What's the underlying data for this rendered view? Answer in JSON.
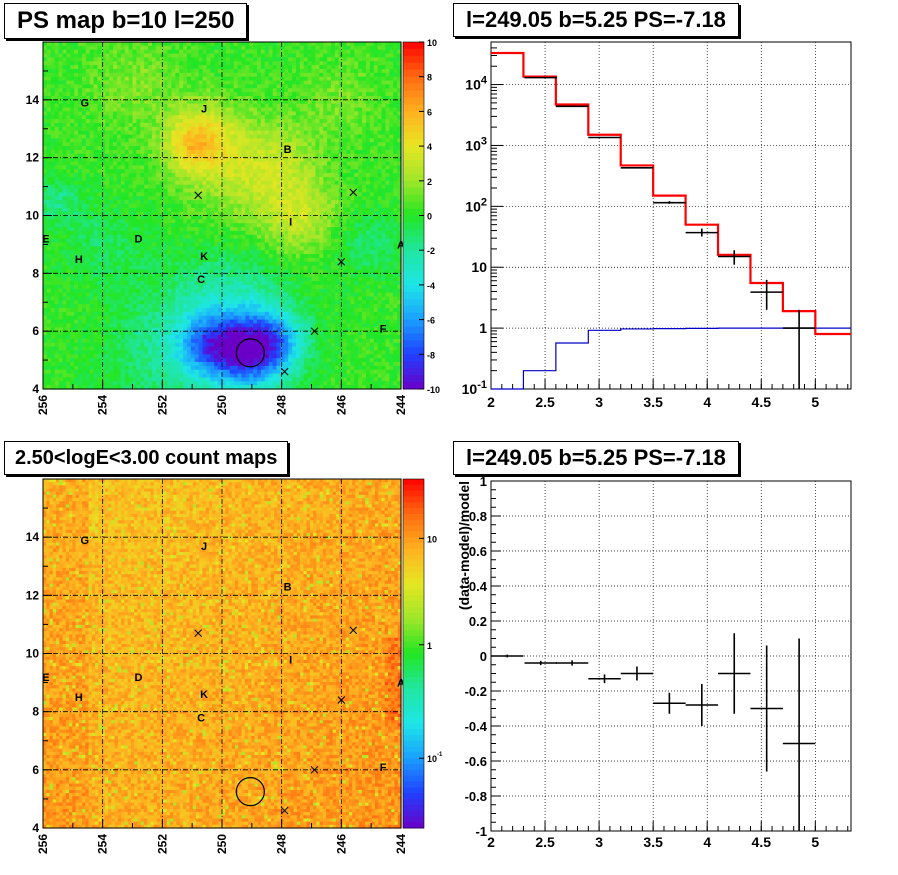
{
  "panels": {
    "ps_map": {
      "title": "PS map b=10 l=250",
      "x_ticks": [
        "256",
        "254",
        "252",
        "250",
        "248",
        "246",
        "244"
      ],
      "y_ticks": [
        "4",
        "6",
        "8",
        "10",
        "12",
        "14"
      ],
      "colorbar_ticks": [
        "10",
        "8",
        "6",
        "4",
        "2",
        "0",
        "-2",
        "-4",
        "-6",
        "-8",
        "-10"
      ],
      "source_labels": [
        "G",
        "J",
        "B",
        "I",
        "E",
        "D",
        "K",
        "H",
        "C",
        "A",
        "F"
      ]
    },
    "spectrum": {
      "title": "l=249.05 b=5.25 PS=-7.18",
      "x_ticks": [
        "2",
        "2.5",
        "3",
        "3.5",
        "4",
        "4.5",
        "5"
      ],
      "y_ticks": [
        "10^-1",
        "1",
        "10",
        "10^2",
        "10^3",
        "10^4"
      ]
    },
    "count_map": {
      "title": "2.50<logE<3.00 count maps",
      "x_ticks": [
        "256",
        "254",
        "252",
        "250",
        "248",
        "246",
        "244"
      ],
      "y_ticks": [
        "4",
        "6",
        "8",
        "10",
        "12",
        "14"
      ],
      "colorbar_ticks": [
        "10",
        "1",
        "10^-1"
      ],
      "source_labels": [
        "G",
        "J",
        "B",
        "I",
        "E",
        "D",
        "K",
        "H",
        "C",
        "A",
        "F"
      ]
    },
    "residual": {
      "title": "l=249.05 b=5.25 PS=-7.18",
      "ylabel": "(data-model)/model",
      "x_ticks": [
        "2",
        "2.5",
        "3",
        "3.5",
        "4",
        "4.5",
        "5"
      ],
      "y_ticks": [
        "1",
        "0.8",
        "0.6",
        "0.4",
        "0.2",
        "0",
        "-0.2",
        "-0.4",
        "-0.6",
        "-0.8",
        "-1"
      ]
    }
  },
  "chart_data": [
    {
      "type": "heatmap",
      "title": "PS map b=10 l=250",
      "xlim": [
        256,
        244
      ],
      "ylim": [
        4,
        16
      ],
      "zlim": [
        -10,
        10
      ],
      "colormap": [
        "#6a00c8",
        "#2040ff",
        "#1aa0ff",
        "#1ee6e6",
        "#20e6a0",
        "#22e622",
        "#a0e62a",
        "#e6e622",
        "#ffb020",
        "#ff6a10",
        "#ff0000"
      ],
      "dominant_value": 0,
      "markers": [
        {
          "label": "G",
          "l": 254.6,
          "b": 13.9
        },
        {
          "label": "J",
          "l": 250.6,
          "b": 13.7
        },
        {
          "label": "B",
          "l": 247.8,
          "b": 12.3
        },
        {
          "label": "I",
          "l": 247.7,
          "b": 9.8
        },
        {
          "label": "E",
          "l": 255.9,
          "b": 9.2
        },
        {
          "label": "D",
          "l": 252.8,
          "b": 9.2
        },
        {
          "label": "K",
          "l": 250.6,
          "b": 8.6
        },
        {
          "label": "H",
          "l": 254.8,
          "b": 8.5
        },
        {
          "label": "C",
          "l": 250.7,
          "b": 7.8
        },
        {
          "label": "A",
          "l": 244.0,
          "b": 9.0
        },
        {
          "label": "F",
          "l": 244.6,
          "b": 6.1
        }
      ],
      "crosses": [
        {
          "l": 250.8,
          "b": 10.7
        },
        {
          "l": 245.6,
          "b": 10.8
        },
        {
          "l": 246.0,
          "b": 8.4
        },
        {
          "l": 246.9,
          "b": 6.0
        },
        {
          "l": 247.9,
          "b": 4.6
        }
      ],
      "circle": {
        "l": 249.05,
        "b": 5.25
      }
    },
    {
      "type": "line",
      "title": "l=249.05 b=5.25 PS=-7.18",
      "xlim": [
        2,
        5.33
      ],
      "ylim": [
        0.1,
        50000
      ],
      "ylog": true,
      "grid": true,
      "bin_edges": [
        2.0,
        2.3,
        2.6,
        2.9,
        3.2,
        3.5,
        3.8,
        4.1,
        4.4,
        4.7,
        5.0,
        5.33
      ],
      "series": [
        {
          "color": "#ff0000",
          "values": [
            33000,
            13500,
            4700,
            1500,
            470,
            150,
            50,
            16,
            5.5,
            1.9,
            0.8
          ]
        },
        {
          "color": "#000000",
          "points": [
            {
              "x": 2.46,
              "y": 13000,
              "xerr": 0.15
            },
            {
              "x": 2.75,
              "y": 4400,
              "xerr": 0.15
            },
            {
              "x": 3.05,
              "y": 1350,
              "xerr": 0.15
            },
            {
              "x": 3.35,
              "y": 430,
              "xerr": 0.15
            },
            {
              "x": 3.65,
              "y": 115,
              "xerr": 0.15,
              "yerr": [
                110,
                122
              ]
            },
            {
              "x": 3.95,
              "y": 37,
              "xerr": 0.15,
              "yerr": [
                32,
                43
              ]
            },
            {
              "x": 4.25,
              "y": 15,
              "xerr": 0.15,
              "yerr": [
                11,
                19
              ]
            },
            {
              "x": 4.55,
              "y": 3.9,
              "xerr": 0.15,
              "yerr": [
                2.0,
                6.2
              ]
            },
            {
              "x": 4.85,
              "y": 1.0,
              "xerr": 0.15,
              "yerr": [
                0.1,
                2.0
              ]
            }
          ]
        },
        {
          "color": "#0000c8",
          "values": [
            0.1,
            0.2,
            0.57,
            0.92,
            0.97,
            0.98,
            0.99,
            1.0,
            1.0,
            1.0,
            1.0
          ]
        }
      ]
    },
    {
      "type": "heatmap",
      "title": "2.50<logE<3.00 count maps",
      "xlim": [
        256,
        244
      ],
      "ylim": [
        4,
        16
      ],
      "zlog": true,
      "zlim": [
        0.03,
        30
      ],
      "dominant_value": 6,
      "circle": {
        "l": 249.05,
        "b": 5.25
      }
    },
    {
      "type": "scatter",
      "title": "l=249.05 b=5.25 PS=-7.18",
      "ylabel": "(data-model)/model",
      "xlim": [
        2,
        5.33
      ],
      "ylim": [
        -1,
        1
      ],
      "grid": true,
      "points": [
        {
          "x": 2.15,
          "y": 0.0,
          "xerr": 0.15,
          "yerr": 0.008
        },
        {
          "x": 2.46,
          "y": -0.04,
          "xerr": 0.15,
          "yerr": 0.012
        },
        {
          "x": 2.75,
          "y": -0.04,
          "xerr": 0.15,
          "yerr": 0.015
        },
        {
          "x": 3.05,
          "y": -0.13,
          "xerr": 0.15,
          "yerr": 0.025
        },
        {
          "x": 3.35,
          "y": -0.1,
          "xerr": 0.15,
          "yerr": 0.04
        },
        {
          "x": 3.65,
          "y": -0.27,
          "xerr": 0.15,
          "yerr": 0.06
        },
        {
          "x": 3.95,
          "y": -0.28,
          "xerr": 0.15,
          "yerr": 0.12
        },
        {
          "x": 4.25,
          "y": -0.1,
          "xerr": 0.15,
          "yerr": 0.23
        },
        {
          "x": 4.55,
          "y": -0.3,
          "xerr": 0.15,
          "yerr": 0.36
        },
        {
          "x": 4.85,
          "y": -0.5,
          "xerr": 0.15,
          "yerr": 0.6
        }
      ]
    }
  ]
}
